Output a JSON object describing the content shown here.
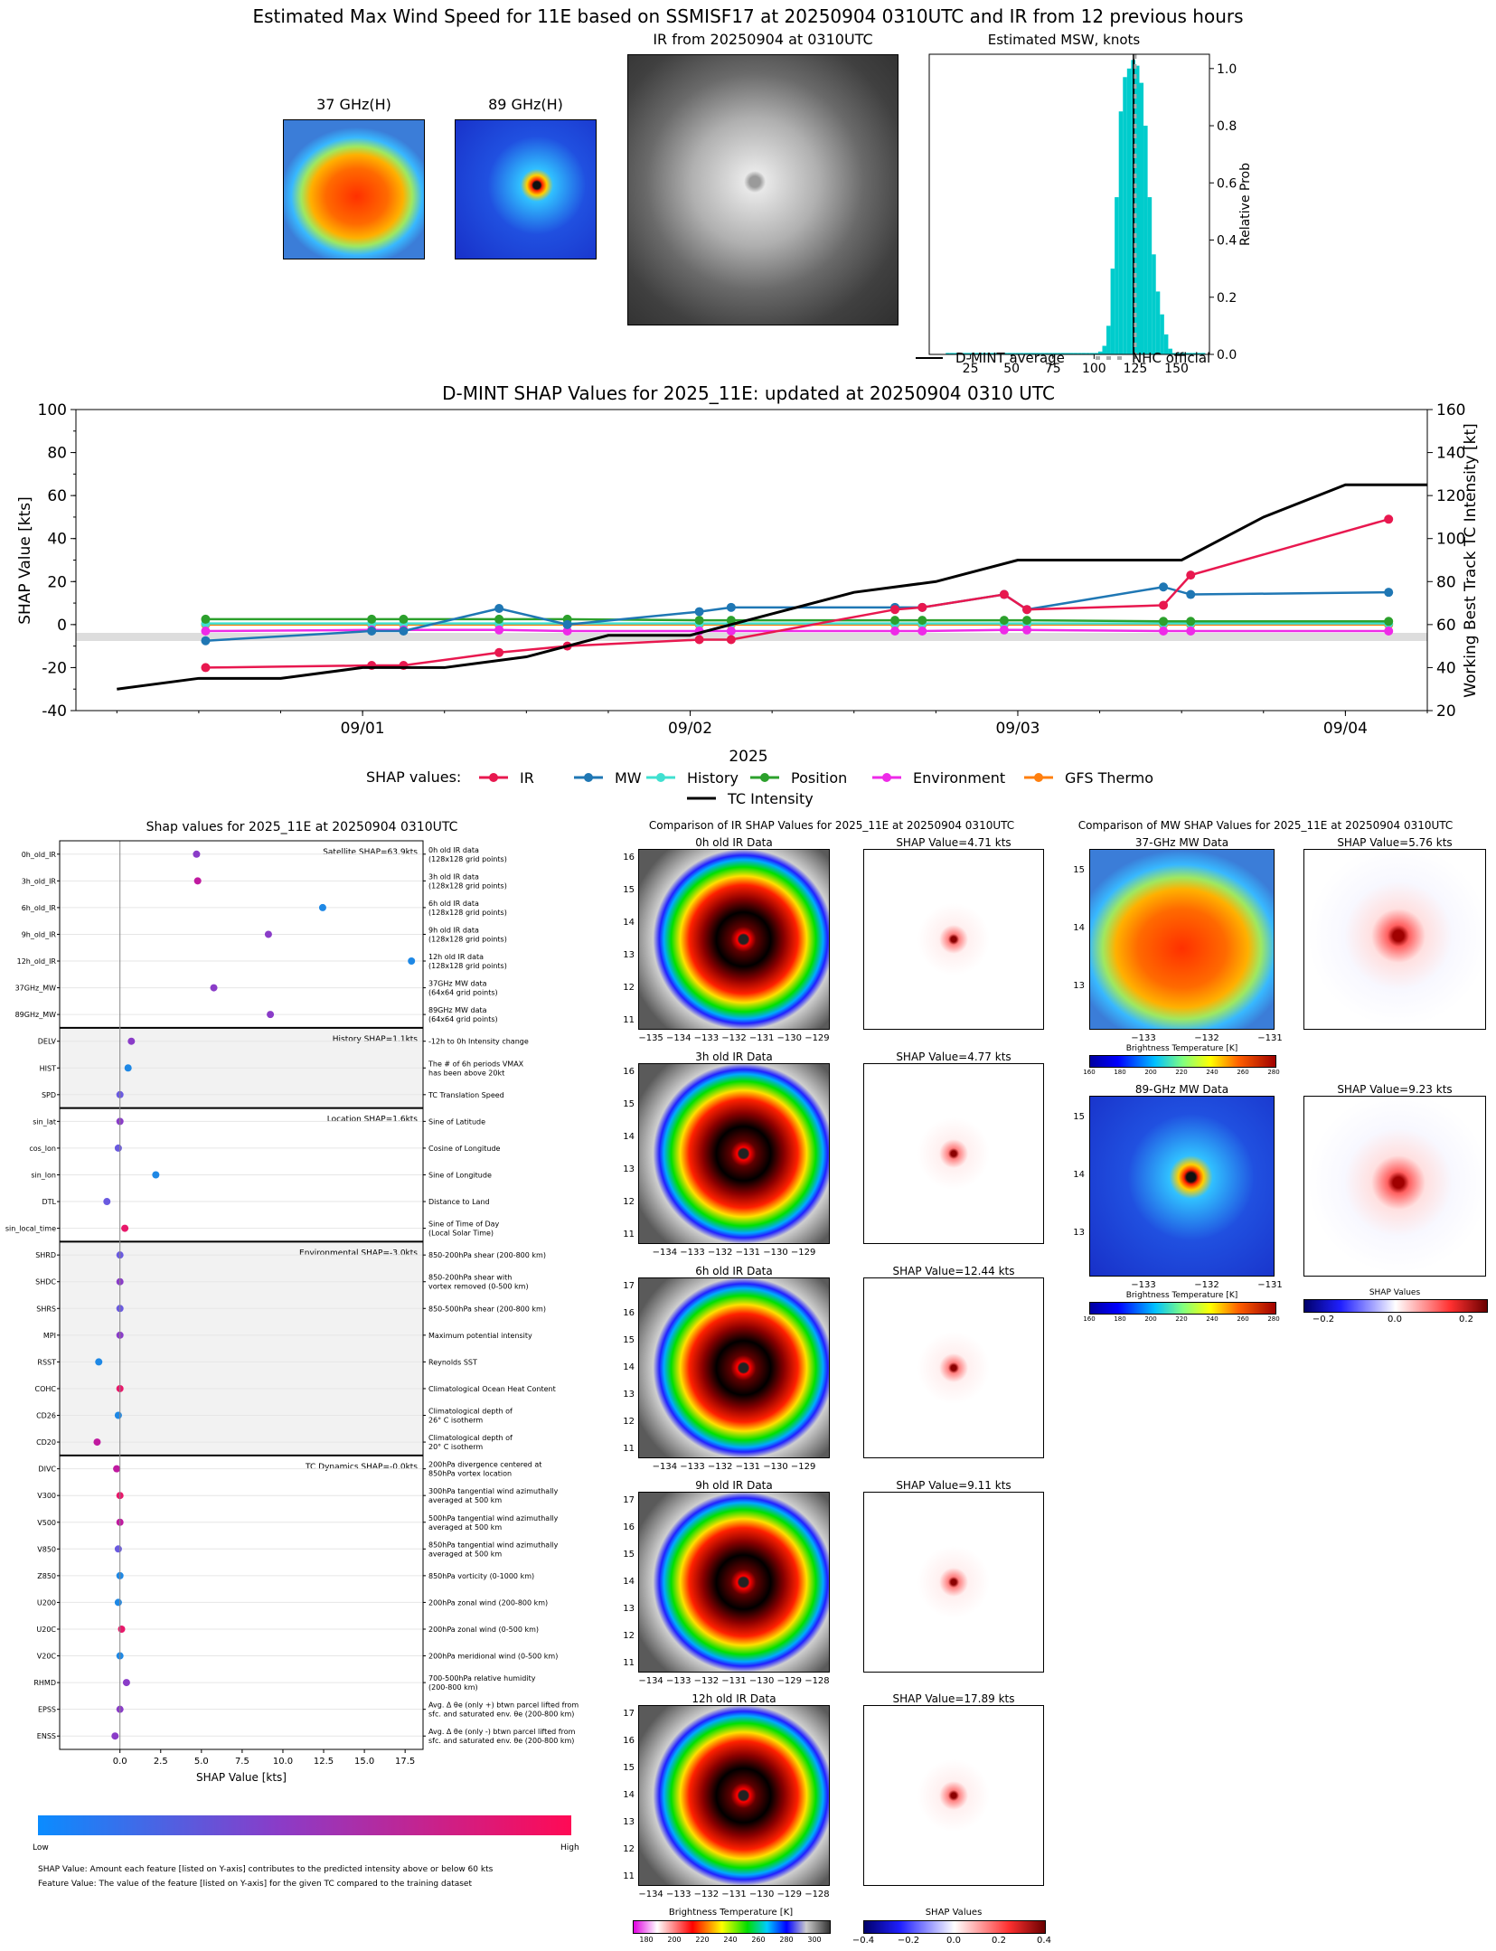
{
  "header": {
    "main_title": "Estimated Max Wind Speed for 11E based on SSMISF17 at 20250904 0310UTC and IR from 12 previous hours"
  },
  "top_panels": {
    "ghz37_title": "37 GHz(H)",
    "ghz89_title": "89 GHz(H)",
    "ir_title": "IR from 20250904 at 0310UTC"
  },
  "colors": {
    "ir": "#e8184f",
    "mw": "#1f77b4",
    "history": "#40e0d0",
    "position": "#2ca02c",
    "environment": "#ee2ae8",
    "gfs_thermo": "#ff7f0e",
    "tc_intensity": "#000000",
    "hist_bar": "#00cccc",
    "nhc_dash": "#aaaaaa"
  },
  "shap_plot": {
    "title": "Shap values for 2025_11E at 20250904 0310UTC",
    "xlabel": "SHAP Value [kts]",
    "xticks": [
      "0.0",
      "2.5",
      "5.0",
      "7.5",
      "10.0",
      "12.5",
      "15.0",
      "17.5"
    ],
    "colorbar_low": "Low",
    "colorbar_high": "High"
  },
  "ir_comparison": {
    "title": "Comparison of IR SHAP Values for 2025_11E at 20250904 0310UTC",
    "rows": [
      {
        "label": "0h old IR Data",
        "shap_title": "SHAP Value=4.71 kts",
        "yticks": [
          "16",
          "15",
          "14",
          "13",
          "12",
          "11"
        ],
        "xticks": "−135 −134 −133 −132 −131 −130 −129"
      },
      {
        "label": "3h old IR Data",
        "shap_title": "SHAP Value=4.77 kts",
        "yticks": [
          "16",
          "15",
          "14",
          "13",
          "12",
          "11"
        ],
        "xticks": "−134 −133 −132 −131 −130 −129"
      },
      {
        "label": "6h old IR Data",
        "shap_title": "SHAP Value=12.44 kts",
        "yticks": [
          "17",
          "16",
          "15",
          "14",
          "13",
          "12",
          "11"
        ],
        "xticks": "−134 −133 −132 −131 −130 −129"
      },
      {
        "label": "9h old IR Data",
        "shap_title": "SHAP Value=9.11 kts",
        "yticks": [
          "17",
          "16",
          "15",
          "14",
          "13",
          "12",
          "11"
        ],
        "xticks": "−134 −133 −132 −131 −130 −129 −128"
      },
      {
        "label": "12h old IR Data",
        "shap_title": "SHAP Value=17.89 kts",
        "yticks": [
          "17",
          "16",
          "15",
          "14",
          "13",
          "12",
          "11"
        ],
        "xticks": "−134 −133 −132 −131 −130 −129 −128"
      }
    ],
    "bt_label": "Brightness Temperature [K]",
    "bt_ticks": [
      "180",
      "200",
      "220",
      "240",
      "260",
      "280",
      "300"
    ],
    "shap_label": "SHAP Values",
    "shap_ticks": [
      "−0.4",
      "−0.2",
      "0.0",
      "0.2",
      "0.4"
    ]
  },
  "mw_comparison": {
    "title": "Comparison of MW SHAP Values for 2025_11E at 20250904 0310UTC",
    "rows": [
      {
        "label": "37-GHz MW Data",
        "shap_title": "SHAP Value=5.76 kts"
      },
      {
        "label": "89-GHz MW Data",
        "shap_title": "SHAP Value=9.23 kts"
      }
    ],
    "yticks": [
      "15",
      "14",
      "13"
    ],
    "xticks": [
      "−133",
      "−132",
      "−131"
    ],
    "bt_label": "Brightness Temperature [K]",
    "bt_ticks": [
      "160",
      "180",
      "200",
      "220",
      "240",
      "260",
      "280"
    ],
    "shap_label": "SHAP Values",
    "shap_ticks": [
      "−0.2",
      "0.0",
      "0.2"
    ]
  },
  "footer": {
    "line1": "SHAP Value: Amount each feature [listed on Y-axis] contributes to the predicted intensity above or below 60 kts",
    "line2": "Feature Value: The value of the feature [listed on Y-axis] for the given TC compared to the training dataset"
  },
  "chart_data": [
    {
      "type": "bar",
      "title": "Estimated MSW, knots",
      "xlabel": "",
      "ylabel": "Relative Prob",
      "xlim": [
        0,
        170
      ],
      "ylim": [
        0,
        1.05
      ],
      "xticks": [
        25,
        50,
        75,
        100,
        125,
        150
      ],
      "yticks": [
        0.0,
        0.2,
        0.4,
        0.6,
        0.8,
        1.0
      ],
      "bin_width": 2.5,
      "bins_start": [
        10,
        12.5,
        15,
        17.5,
        20,
        22.5,
        25,
        27.5,
        30,
        32.5,
        35,
        37.5,
        40,
        42.5,
        45,
        47.5,
        50,
        52.5,
        55,
        57.5,
        60,
        62.5,
        65,
        67.5,
        70,
        72.5,
        75,
        77.5,
        80,
        82.5,
        85,
        87.5,
        90,
        92.5,
        95,
        97.5,
        100,
        102.5,
        105,
        107.5,
        110,
        112.5,
        115,
        117.5,
        120,
        122.5,
        125,
        127.5,
        130,
        132.5,
        135,
        137.5,
        140,
        142.5,
        145,
        147.5,
        150,
        152.5,
        155,
        157.5,
        160,
        162.5,
        165
      ],
      "values": [
        0.005,
        0.005,
        0.005,
        0.005,
        0.005,
        0.005,
        0.005,
        0.005,
        0.005,
        0.005,
        0.005,
        0.005,
        0.005,
        0.005,
        0.005,
        0.005,
        0.005,
        0.005,
        0.005,
        0.005,
        0.005,
        0.005,
        0.005,
        0.005,
        0.005,
        0.005,
        0.005,
        0.005,
        0.005,
        0.005,
        0.005,
        0.005,
        0.005,
        0.005,
        0.005,
        0.005,
        0.005,
        0.01,
        0.03,
        0.1,
        0.3,
        0.55,
        0.85,
        0.97,
        1.0,
        1.03,
        1.01,
        0.95,
        0.8,
        0.55,
        0.35,
        0.22,
        0.14,
        0.07,
        0.02,
        0.005,
        0.005,
        0.005,
        0.005,
        0.005,
        0.005,
        0.005,
        0.005
      ],
      "dmint_average": 124,
      "nhc_official": 125,
      "legend": [
        "D-MINT average",
        "NHC official"
      ],
      "legend_placement": "bottom"
    },
    {
      "type": "line",
      "title": "D-MINT SHAP Values for 2025_11E: updated at 20250904 0310 UTC",
      "xlabel": "2025",
      "ylabel": "SHAP Value [kts]",
      "y2label": "Working Best Track TC Intensity [kt]",
      "ylim": [
        -40,
        100
      ],
      "y2lim": [
        20,
        160
      ],
      "xlim": [
        "2025-08-31 03:00",
        "2025-09-04 06:00"
      ],
      "xtick_labels": [
        "09/01",
        "09/02",
        "09/03",
        "09/04"
      ],
      "xtick_dates": [
        "2025-09-01 00:00",
        "2025-09-02 00:00",
        "2025-09-03 00:00",
        "2025-09-04 00:00"
      ],
      "yticks": [
        -40,
        -20,
        0,
        20,
        40,
        60,
        80,
        100
      ],
      "y2ticks": [
        20,
        40,
        60,
        80,
        100,
        120,
        140,
        160
      ],
      "legend_title": "SHAP values:",
      "legend_placement": "bottom",
      "x_shap": [
        "2025-08-31 12:30",
        "2025-09-01 00:40",
        "2025-09-01 03:00",
        "2025-09-01 10:00",
        "2025-09-01 15:00",
        "2025-09-02 00:40",
        "2025-09-02 03:00",
        "2025-09-02 15:00",
        "2025-09-02 17:00",
        "2025-09-02 23:00",
        "2025-09-03 00:40",
        "2025-09-03 10:40",
        "2025-09-03 12:40",
        "2025-09-04 03:10"
      ],
      "series": [
        {
          "name": "IR",
          "values": [
            -20,
            -19,
            -19,
            -13,
            -10,
            -7,
            -7,
            7,
            8,
            14,
            7,
            9,
            23,
            49
          ]
        },
        {
          "name": "MW",
          "values": [
            -7.5,
            -3,
            -3,
            7.5,
            0,
            6,
            8,
            8,
            8,
            14,
            7,
            17.5,
            14,
            15
          ]
        },
        {
          "name": "History",
          "values": [
            0.5,
            0.5,
            0.5,
            0.5,
            0.5,
            0.5,
            0.5,
            0.5,
            0.5,
            0.5,
            0.5,
            0.5,
            0.5,
            0.5
          ]
        },
        {
          "name": "Position",
          "values": [
            2.5,
            2.5,
            2.5,
            2.5,
            2.5,
            2,
            2,
            2,
            2,
            2,
            2,
            1.5,
            1.5,
            1.5
          ]
        },
        {
          "name": "Environment",
          "values": [
            -3,
            -2.5,
            -2.5,
            -2.5,
            -3,
            -3,
            -3,
            -3,
            -3,
            -2.5,
            -2.5,
            -3,
            -3,
            -3
          ]
        },
        {
          "name": "GFS Thermo",
          "values": [
            0,
            0,
            0,
            0,
            0,
            0,
            0,
            0,
            0,
            0,
            0,
            0,
            0,
            0
          ]
        }
      ],
      "tc_intensity": {
        "name": "TC Intensity",
        "x": [
          "2025-08-31 06:00",
          "2025-08-31 12:00",
          "2025-08-31 18:00",
          "2025-09-01 00:00",
          "2025-09-01 06:00",
          "2025-09-01 12:00",
          "2025-09-01 18:00",
          "2025-09-02 00:00",
          "2025-09-02 06:00",
          "2025-09-02 12:00",
          "2025-09-02 18:00",
          "2025-09-03 00:00",
          "2025-09-03 06:00",
          "2025-09-03 12:00",
          "2025-09-03 18:00",
          "2025-09-04 00:00",
          "2025-09-04 06:00"
        ],
        "values": [
          30,
          35,
          35,
          40,
          40,
          45,
          55,
          55,
          65,
          75,
          80,
          90,
          90,
          90,
          110,
          125,
          125
        ]
      }
    },
    {
      "type": "scatter",
      "title": "Shap values for 2025_11E at 20250904 0310UTC",
      "xlabel": "SHAP Value [kts]",
      "xlim": [
        -3.7,
        18.6
      ],
      "xticks": [
        0.0,
        2.5,
        5.0,
        7.5,
        10.0,
        12.5,
        15.0,
        17.5
      ],
      "groups": [
        {
          "label": "Satellite SHAP=63.9kts",
          "shaded": false,
          "features": [
            {
              "name": "0h_old_IR",
              "desc": "0h old IR data\n(128x128 grid points)",
              "value": 4.7,
              "color": "#8a3cc8"
            },
            {
              "name": "3h_old_IR",
              "desc": "3h old IR data\n(128x128 grid points)",
              "value": 4.77,
              "color": "#c01aa0"
            },
            {
              "name": "6h_old_IR",
              "desc": "6h old IR data\n(128x128 grid points)",
              "value": 12.44,
              "color": "#1e88e5"
            },
            {
              "name": "9h_old_IR",
              "desc": "9h old IR data\n(128x128 grid points)",
              "value": 9.11,
              "color": "#8a3cc8"
            },
            {
              "name": "12h_old_IR",
              "desc": "12h old IR data\n(128x128 grid points)",
              "value": 17.89,
              "color": "#1e88e5"
            },
            {
              "name": "37GHz_MW",
              "desc": "37GHz MW data\n(64x64 grid points)",
              "value": 5.76,
              "color": "#8a3cc8"
            },
            {
              "name": "89GHz_MW",
              "desc": "89GHz MW data\n(64x64 grid points)",
              "value": 9.23,
              "color": "#8a3cc8"
            }
          ]
        },
        {
          "label": "History SHAP=1.1kts",
          "shaded": true,
          "features": [
            {
              "name": "DELV",
              "desc": "-12h to 0h Intensity change",
              "value": 0.7,
              "color": "#8a3cc8"
            },
            {
              "name": "HIST",
              "desc": "The # of 6h periods VMAX\nhas been above 20kt",
              "value": 0.5,
              "color": "#1e88e5"
            },
            {
              "name": "SPD",
              "desc": "TC Translation Speed",
              "value": 0.0,
              "color": "#6a5ae0"
            }
          ]
        },
        {
          "label": "Location SHAP=1.6kts",
          "shaded": false,
          "features": [
            {
              "name": "sin_lat",
              "desc": "Sine of Latitude",
              "value": 0.0,
              "color": "#8a3cc8"
            },
            {
              "name": "cos_lon",
              "desc": "Cosine of Longitude",
              "value": -0.1,
              "color": "#6a5ae0"
            },
            {
              "name": "sin_lon",
              "desc": "Sine of Longitude",
              "value": 2.2,
              "color": "#1e88e5"
            },
            {
              "name": "DTL",
              "desc": "Distance to Land",
              "value": -0.8,
              "color": "#6a5ae0"
            },
            {
              "name": "sin_local_time",
              "desc": "Sine of Time of Day\n(Local Solar Time)",
              "value": 0.3,
              "color": "#e8186a"
            }
          ]
        },
        {
          "label": "Environmental SHAP=-3.0kts",
          "shaded": true,
          "features": [
            {
              "name": "SHRD",
              "desc": "850-200hPa shear (200-800 km)",
              "value": 0.0,
              "color": "#6a5ae0"
            },
            {
              "name": "SHDC",
              "desc": "850-200hPa shear with\nvortex removed (0-500 km)",
              "value": 0.0,
              "color": "#8a3cc8"
            },
            {
              "name": "SHRS",
              "desc": "850-500hPa shear (200-800 km)",
              "value": 0.0,
              "color": "#6a5ae0"
            },
            {
              "name": "MPI",
              "desc": "Maximum potential intensity",
              "value": 0.0,
              "color": "#8a3cc8"
            },
            {
              "name": "RSST",
              "desc": "Reynolds SST",
              "value": -1.3,
              "color": "#1e88e5"
            },
            {
              "name": "COHC",
              "desc": "Climatological Ocean Heat Content",
              "value": 0.0,
              "color": "#e8186a"
            },
            {
              "name": "CD26",
              "desc": "Climatological depth of\n26° C isotherm",
              "value": -0.1,
              "color": "#1e88e5"
            },
            {
              "name": "CD20",
              "desc": "Climatological depth of\n20° C isotherm",
              "value": -1.4,
              "color": "#c01aa0"
            }
          ]
        },
        {
          "label": "TC Dynamics SHAP=-0.0kts",
          "shaded": false,
          "features": [
            {
              "name": "DIVC",
              "desc": "200hPa divergence centered at\n850hPa vortex location",
              "value": -0.2,
              "color": "#c01aa0"
            },
            {
              "name": "V300",
              "desc": "300hPa tangential wind azimuthally\naveraged at 500 km",
              "value": 0.0,
              "color": "#e8186a"
            },
            {
              "name": "V500",
              "desc": "500hPa tangential wind azimuthally\naveraged at 500 km",
              "value": 0.0,
              "color": "#c01aa0"
            },
            {
              "name": "V850",
              "desc": "850hPa tangential wind azimuthally\naveraged at 500 km",
              "value": -0.1,
              "color": "#6a5ae0"
            },
            {
              "name": "Z850",
              "desc": "850hPa vorticity (0-1000 km)",
              "value": 0.0,
              "color": "#1e88e5"
            },
            {
              "name": "U200",
              "desc": "200hPa zonal wind (200-800 km)",
              "value": -0.1,
              "color": "#1e88e5"
            },
            {
              "name": "U20C",
              "desc": "200hPa zonal wind (0-500 km)",
              "value": 0.1,
              "color": "#e8186a"
            },
            {
              "name": "V20C",
              "desc": "200hPa meridional wind (0-500 km)",
              "value": 0.0,
              "color": "#1e88e5"
            },
            {
              "name": "RHMD",
              "desc": "700-500hPa relative humidity\n(200-800 km)",
              "value": 0.4,
              "color": "#8a3cc8"
            },
            {
              "name": "EPSS",
              "desc": "Avg. Δ θe (only +) btwn parcel lifted from\nsfc. and saturated env. θe (200-800 km)",
              "value": 0.0,
              "color": "#8a3cc8"
            },
            {
              "name": "ENSS",
              "desc": "Avg. Δ θe (only -) btwn parcel lifted from\nsfc. and saturated env. θe (200-800 km)",
              "value": -0.3,
              "color": "#8a3cc8"
            }
          ]
        }
      ]
    }
  ]
}
